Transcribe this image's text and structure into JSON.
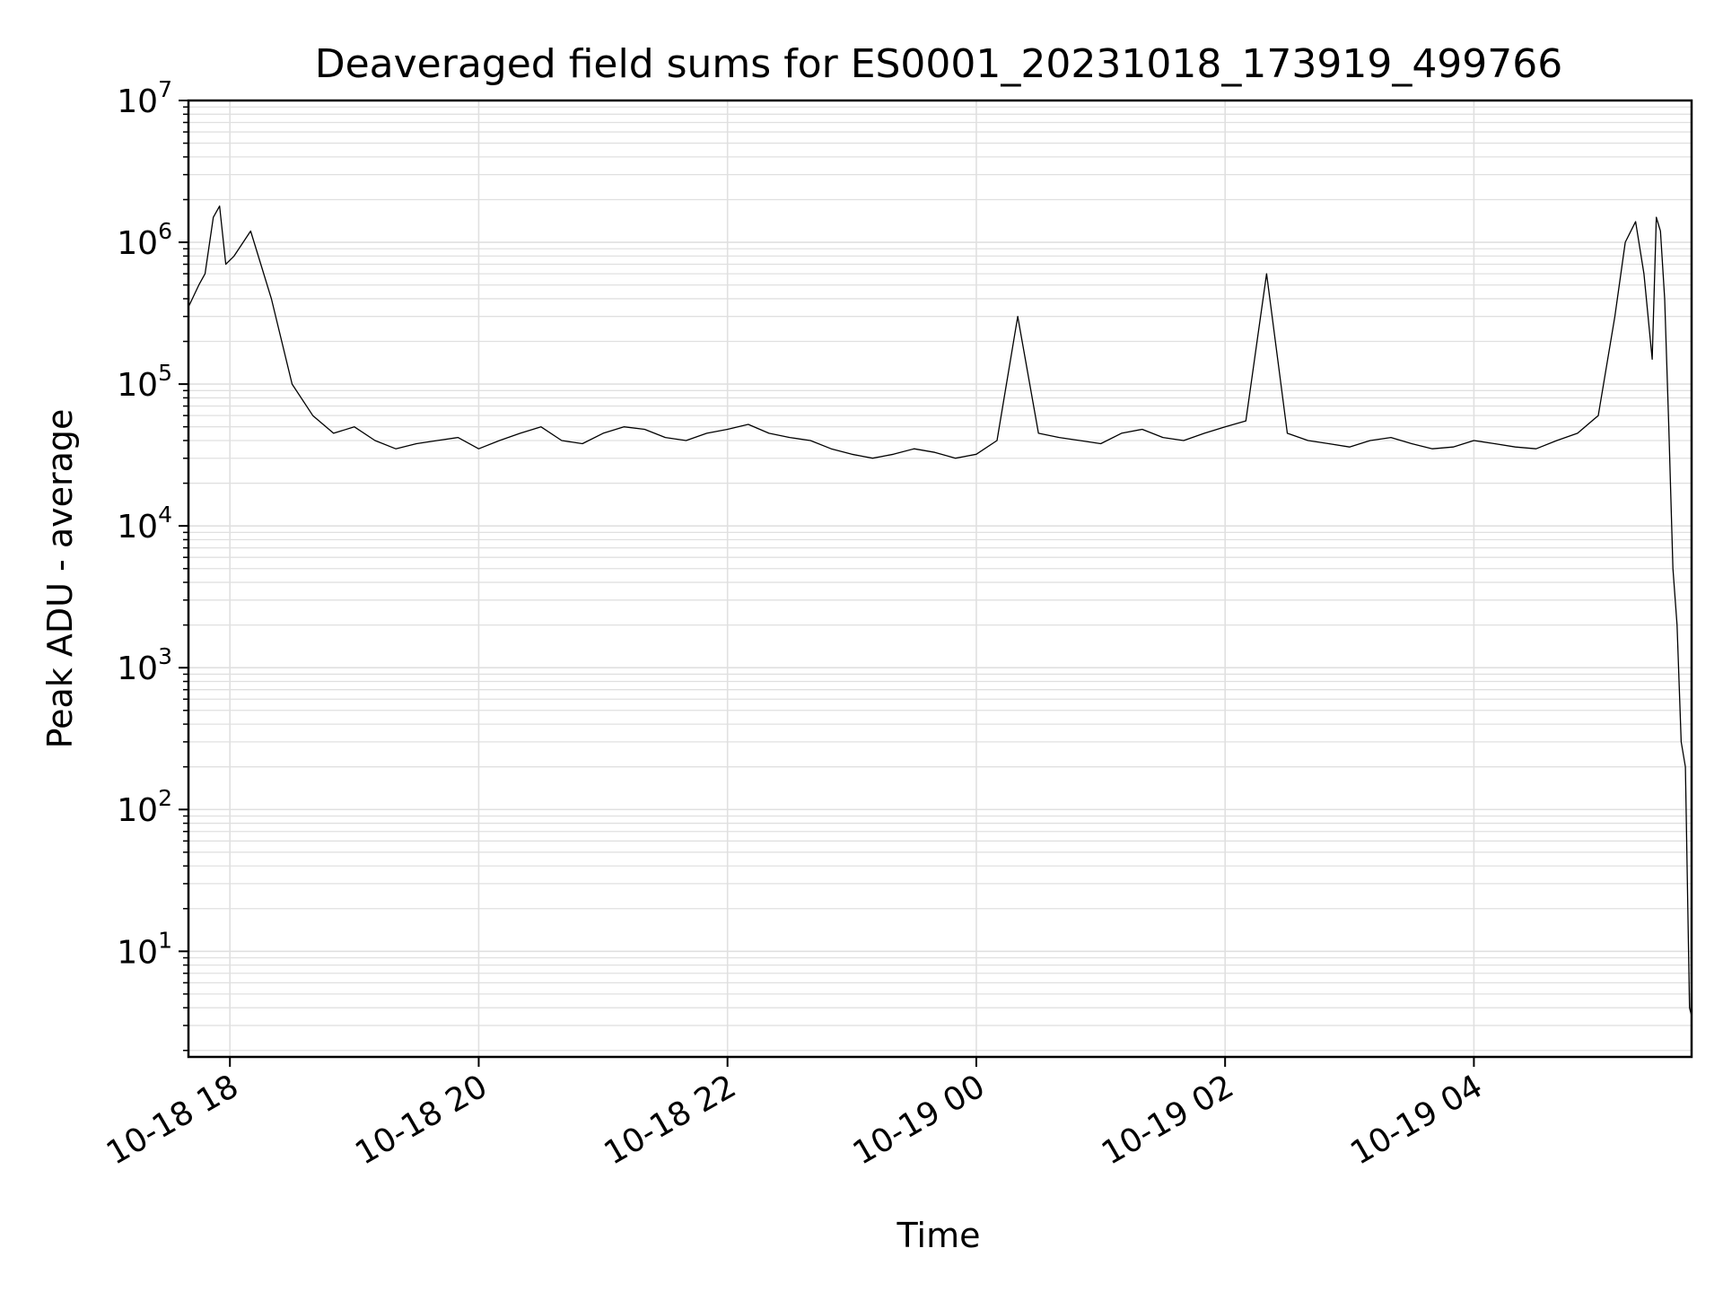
{
  "chart_data": {
    "type": "line",
    "title": "Deaveraged field sums for ES0001_20231018_173919_499766",
    "xlabel": "Time",
    "ylabel": "Peak ADU - average",
    "y_scale": "log",
    "ylim": [
      1.8,
      10000000
    ],
    "xlim": [
      "2023-10-18 17:40",
      "2023-10-19 05:45"
    ],
    "grid": true,
    "line_color": "#000000",
    "grid_color": "#e0e0e0",
    "x_ticks": [
      {
        "value": "2023-10-18 18:00",
        "label": "10-18 18"
      },
      {
        "value": "2023-10-18 20:00",
        "label": "10-18 20"
      },
      {
        "value": "2023-10-18 22:00",
        "label": "10-18 22"
      },
      {
        "value": "2023-10-19 00:00",
        "label": "10-19 00"
      },
      {
        "value": "2023-10-19 02:00",
        "label": "10-19 02"
      },
      {
        "value": "2023-10-19 04:00",
        "label": "10-19 04"
      }
    ],
    "y_ticks": [
      {
        "value": 10,
        "base": "10",
        "exp": "1"
      },
      {
        "value": 100,
        "base": "10",
        "exp": "2"
      },
      {
        "value": 1000,
        "base": "10",
        "exp": "3"
      },
      {
        "value": 10000,
        "base": "10",
        "exp": "4"
      },
      {
        "value": 100000,
        "base": "10",
        "exp": "5"
      },
      {
        "value": 1000000,
        "base": "10",
        "exp": "6"
      },
      {
        "value": 10000000,
        "base": "10",
        "exp": "7"
      }
    ],
    "series": [
      {
        "x": [
          "2023-10-18 17:40",
          "2023-10-18 17:45",
          "2023-10-18 17:48",
          "2023-10-18 17:52",
          "2023-10-18 17:55",
          "2023-10-18 17:58",
          "2023-10-18 18:02",
          "2023-10-18 18:10",
          "2023-10-18 18:20",
          "2023-10-18 18:30",
          "2023-10-18 18:40",
          "2023-10-18 18:50",
          "2023-10-18 19:00",
          "2023-10-18 19:10",
          "2023-10-18 19:20",
          "2023-10-18 19:30",
          "2023-10-18 19:40",
          "2023-10-18 19:50",
          "2023-10-18 20:00",
          "2023-10-18 20:10",
          "2023-10-18 20:20",
          "2023-10-18 20:30",
          "2023-10-18 20:40",
          "2023-10-18 20:50",
          "2023-10-18 21:00",
          "2023-10-18 21:10",
          "2023-10-18 21:20",
          "2023-10-18 21:30",
          "2023-10-18 21:40",
          "2023-10-18 21:50",
          "2023-10-18 22:00",
          "2023-10-18 22:10",
          "2023-10-18 22:20",
          "2023-10-18 22:30",
          "2023-10-18 22:40",
          "2023-10-18 22:50",
          "2023-10-18 23:00",
          "2023-10-18 23:10",
          "2023-10-18 23:20",
          "2023-10-18 23:30",
          "2023-10-18 23:40",
          "2023-10-18 23:50",
          "2023-10-19 00:00",
          "2023-10-19 00:10",
          "2023-10-19 00:20",
          "2023-10-19 00:30",
          "2023-10-19 00:40",
          "2023-10-19 00:50",
          "2023-10-19 01:00",
          "2023-10-19 01:10",
          "2023-10-19 01:20",
          "2023-10-19 01:30",
          "2023-10-19 01:40",
          "2023-10-19 01:50",
          "2023-10-19 02:00",
          "2023-10-19 02:10",
          "2023-10-19 02:20",
          "2023-10-19 02:30",
          "2023-10-19 02:40",
          "2023-10-19 02:50",
          "2023-10-19 03:00",
          "2023-10-19 03:10",
          "2023-10-19 03:20",
          "2023-10-19 03:30",
          "2023-10-19 03:40",
          "2023-10-19 03:50",
          "2023-10-19 04:00",
          "2023-10-19 04:10",
          "2023-10-19 04:20",
          "2023-10-19 04:30",
          "2023-10-19 04:40",
          "2023-10-19 04:50",
          "2023-10-19 05:00",
          "2023-10-19 05:08",
          "2023-10-19 05:13",
          "2023-10-19 05:18",
          "2023-10-19 05:22",
          "2023-10-19 05:26",
          "2023-10-19 05:28",
          "2023-10-19 05:30",
          "2023-10-19 05:32",
          "2023-10-19 05:34",
          "2023-10-19 05:36",
          "2023-10-19 05:38",
          "2023-10-19 05:40",
          "2023-10-19 05:42",
          "2023-10-19 05:44",
          "2023-10-19 05:45"
        ],
        "y": [
          350000,
          500000,
          600000,
          1500000,
          1800000,
          700000,
          800000,
          1200000,
          400000,
          100000,
          60000,
          45000,
          50000,
          40000,
          35000,
          38000,
          40000,
          42000,
          35000,
          40000,
          45000,
          50000,
          40000,
          38000,
          45000,
          50000,
          48000,
          42000,
          40000,
          45000,
          48000,
          52000,
          45000,
          42000,
          40000,
          35000,
          32000,
          30000,
          32000,
          35000,
          33000,
          30000,
          32000,
          40000,
          300000,
          45000,
          42000,
          40000,
          38000,
          45000,
          48000,
          42000,
          40000,
          45000,
          50000,
          55000,
          600000,
          45000,
          40000,
          38000,
          36000,
          40000,
          42000,
          38000,
          35000,
          36000,
          40000,
          38000,
          36000,
          35000,
          40000,
          45000,
          60000,
          300000,
          1000000,
          1400000,
          600000,
          150000,
          1500000,
          1200000,
          400000,
          50000,
          5000,
          2000,
          300,
          200,
          4,
          3.5
        ]
      }
    ]
  }
}
